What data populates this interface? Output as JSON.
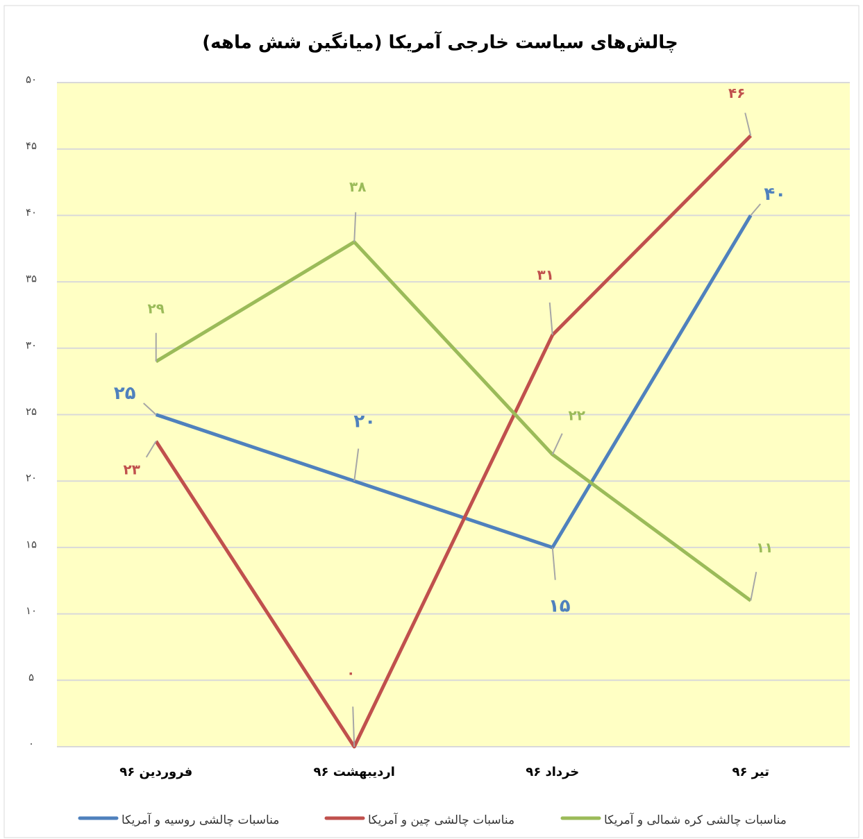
{
  "chart_data": {
    "type": "line",
    "title": "چالش‌های سیاست خارجی آمریکا (میانگین شش ماهه)",
    "categories": [
      "فروردین ۹۶",
      "اردیبهشت ۹۶",
      "خرداد ۹۶",
      "تیر ۹۶"
    ],
    "series": [
      {
        "name": "مناسبات چالشی روسیه و آمریکا",
        "color": "#4f81bd",
        "values": [
          25,
          20,
          15,
          40
        ],
        "value_labels": [
          "۲۵",
          "۲۰",
          "۱۵",
          "۴۰"
        ]
      },
      {
        "name": "مناسبات چالشی چین و آمریکا",
        "color": "#c0504d",
        "values": [
          23,
          0,
          31,
          46
        ],
        "value_labels": [
          "۲۳",
          "۰",
          "۳۱",
          "۴۶"
        ]
      },
      {
        "name": "مناسبات چالشی کره شمالی و آمریکا",
        "color": "#9bbb59",
        "values": [
          29,
          38,
          22,
          11
        ],
        "value_labels": [
          "۲۹",
          "۳۸",
          "۲۲",
          "۱۱"
        ]
      }
    ],
    "ylim": [
      0,
      50
    ],
    "yticks": [
      {
        "value": 0,
        "label": "۰"
      },
      {
        "value": 5,
        "label": "۵"
      },
      {
        "value": 10,
        "label": "۱۰"
      },
      {
        "value": 15,
        "label": "۱۵"
      },
      {
        "value": 20,
        "label": "۲۰"
      },
      {
        "value": 25,
        "label": "۲۵"
      },
      {
        "value": 30,
        "label": "۳۰"
      },
      {
        "value": 35,
        "label": "۳۵"
      },
      {
        "value": 40,
        "label": "۴۰"
      },
      {
        "value": 45,
        "label": "۴۵"
      },
      {
        "value": 50,
        "label": "۵۰"
      }
    ],
    "grid": true,
    "legend": "bottom"
  }
}
